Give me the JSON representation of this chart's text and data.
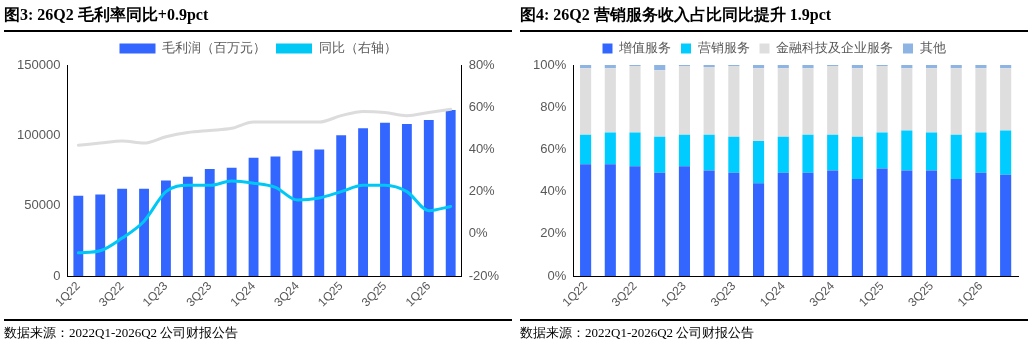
{
  "chart_data": [
    {
      "type": "bar",
      "title": "图3:  26Q2 毛利率同比+0.9pct",
      "categories": [
        "1Q22",
        null,
        "3Q22",
        null,
        "1Q23",
        null,
        "3Q23",
        null,
        "1Q24",
        null,
        "3Q24",
        null,
        "1Q25",
        null,
        "3Q25",
        null,
        "1Q26",
        null
      ],
      "series": [
        {
          "name": "毛利润（百万元）",
          "color": "#3366ff",
          "values": [
            57000,
            58000,
            62000,
            62000,
            68000,
            70600,
            76000,
            77000,
            84000,
            85000,
            89000,
            90000,
            100000,
            105000,
            109000,
            108000,
            111000,
            118000
          ]
        },
        {
          "type": "line",
          "name": "同比（右轴）",
          "color": "#00c8f5",
          "axis": "y2",
          "values": [
            -9,
            -8,
            -2,
            6,
            20,
            23,
            23,
            25,
            24,
            22,
            16,
            17,
            20,
            23,
            23,
            20,
            11,
            13
          ]
        },
        {
          "type": "line",
          "color": "#dcdcdc",
          "axis": "y2",
          "values": [
            42,
            43,
            44,
            43,
            46,
            48,
            49,
            50,
            53,
            53,
            53,
            53,
            56,
            58,
            57.5,
            56,
            57.5,
            59
          ]
        }
      ],
      "ylim": [
        0,
        150000
      ],
      "yticks": [
        0,
        50000,
        100000,
        150000
      ],
      "y2lim": [
        -20,
        80
      ],
      "y2ticks": [
        {
          "value": -20,
          "label": "-20%"
        },
        {
          "value": 0,
          "label": "0%"
        },
        {
          "value": 20,
          "label": "20%"
        },
        {
          "value": 40,
          "label": "40%"
        },
        {
          "value": 60,
          "label": "60%"
        },
        {
          "value": 80,
          "label": "80%"
        }
      ],
      "grid": false,
      "legend": "top",
      "annotations": [
        "数据来源：2022Q1-2026Q2 公司财报公告"
      ]
    },
    {
      "type": "bar",
      "title": "图4:  26Q2 营销服务收入占比同比提升 1.9pct",
      "stacked": true,
      "categories": [
        "1Q22",
        null,
        "3Q22",
        null,
        "1Q23",
        null,
        "3Q23",
        null,
        "1Q24",
        null,
        "3Q24",
        null,
        "1Q25",
        null,
        "3Q25",
        null,
        "1Q26",
        null
      ],
      "series": [
        {
          "name": "增值服务",
          "color": "#3366ff",
          "values": [
            53,
            53,
            52,
            49,
            52,
            50,
            49,
            44,
            49,
            49,
            50,
            46,
            51,
            50,
            50,
            46,
            49,
            48
          ]
        },
        {
          "name": "营销服务",
          "color": "#00ccff",
          "values": [
            14,
            15,
            16,
            17,
            15,
            17,
            17,
            20,
            17,
            18,
            17,
            20,
            17,
            19,
            18,
            21,
            19,
            21
          ]
        },
        {
          "name": "金融科技及企业服务",
          "color": "#dedede",
          "values": [
            31.5,
            30.5,
            31.5,
            31.5,
            32.5,
            32,
            33.5,
            34.5,
            32.5,
            31.5,
            32.5,
            32.5,
            31.5,
            29.5,
            30.5,
            31.5,
            30.5,
            29.5
          ]
        },
        {
          "name": "其他",
          "color": "#8db4e2",
          "values": [
            1.5,
            1.5,
            0.5,
            2.5,
            0.5,
            1,
            0.5,
            1.5,
            1.5,
            1.5,
            0.5,
            1.5,
            0.5,
            1.5,
            1.5,
            1.5,
            1.5,
            1.5
          ]
        }
      ],
      "ylim": [
        0,
        100
      ],
      "yticks": [
        {
          "value": 0,
          "label": "0%"
        },
        {
          "value": 20,
          "label": "20%"
        },
        {
          "value": 40,
          "label": "40%"
        },
        {
          "value": 60,
          "label": "60%"
        },
        {
          "value": 80,
          "label": "80%"
        },
        {
          "value": 100,
          "label": "100%"
        }
      ],
      "grid": false,
      "legend": "top",
      "annotations": [
        "数据来源：2022Q1-2026Q2 公司财报公告"
      ]
    }
  ]
}
